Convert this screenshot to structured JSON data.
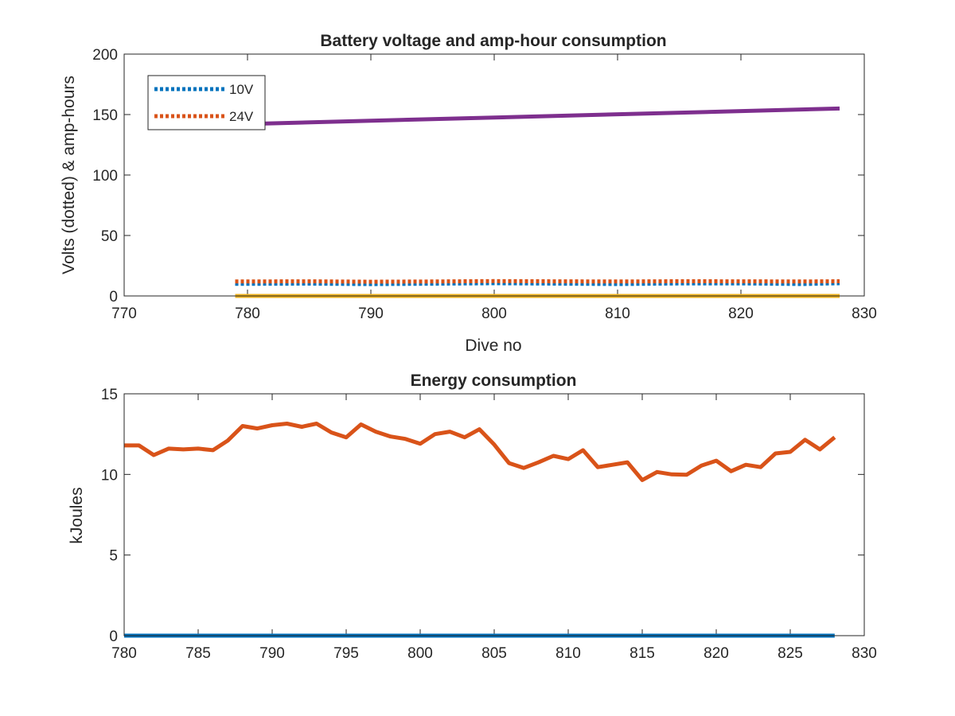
{
  "chart_data": [
    {
      "type": "line",
      "title": "Battery voltage and amp-hour consumption",
      "xlabel": "Dive no",
      "ylabel": "Volts (dotted) & amp-hours",
      "xlim": [
        770,
        830
      ],
      "ylim": [
        0,
        200
      ],
      "xticks": [
        770,
        780,
        790,
        800,
        810,
        820,
        830
      ],
      "yticks": [
        0,
        50,
        100,
        150,
        200
      ],
      "grid": false,
      "legend": {
        "placement": "top-left",
        "entries": [
          "10V",
          "24V"
        ]
      },
      "series": [
        {
          "name": "10V",
          "style": "dotted",
          "color": "#0072BD",
          "x": [
            779,
            785,
            790,
            795,
            800,
            805,
            810,
            815,
            820,
            825,
            828
          ],
          "y": [
            10,
            10.2,
            9.8,
            10.1,
            10.5,
            10.2,
            9.9,
            10.3,
            10.4,
            9.9,
            10.5
          ]
        },
        {
          "name": "24V",
          "style": "dotted",
          "color": "#D95319",
          "x": [
            779,
            785,
            790,
            795,
            800,
            805,
            810,
            815,
            820,
            825,
            828
          ],
          "y": [
            12,
            12.1,
            11.8,
            12,
            12.3,
            12.1,
            12,
            12.2,
            12.1,
            12,
            12.2
          ]
        },
        {
          "style": "solid",
          "color": "#EDB120",
          "x": [
            779,
            828
          ],
          "y": [
            0,
            0
          ]
        },
        {
          "style": "solid",
          "color": "#7E2F8E",
          "x": [
            779,
            828
          ],
          "y": [
            142,
            155
          ]
        }
      ]
    },
    {
      "type": "line",
      "title": "Energy consumption",
      "xlabel": "",
      "ylabel": "kJoules",
      "xlim": [
        780,
        830
      ],
      "ylim": [
        0,
        15
      ],
      "xticks": [
        780,
        785,
        790,
        795,
        800,
        805,
        810,
        815,
        820,
        825,
        830
      ],
      "yticks": [
        0,
        5,
        10,
        15
      ],
      "grid": false,
      "series": [
        {
          "style": "solid",
          "color": "#0072BD",
          "x": [
            780,
            828
          ],
          "y": [
            0,
            0
          ]
        },
        {
          "style": "solid",
          "color": "#D95319",
          "x": [
            780,
            781,
            782,
            783,
            784,
            785,
            786,
            787,
            788,
            789,
            790,
            791,
            792,
            793,
            794,
            795,
            796,
            797,
            798,
            799,
            800,
            801,
            802,
            803,
            804,
            805,
            806,
            807,
            808,
            809,
            810,
            811,
            812,
            813,
            814,
            815,
            816,
            817,
            818,
            819,
            820,
            821,
            822,
            823,
            824,
            825,
            826,
            827,
            828
          ],
          "y": [
            11.8,
            11.8,
            11.2,
            11.6,
            11.55,
            11.6,
            11.5,
            12.1,
            13.0,
            12.85,
            13.05,
            13.15,
            12.95,
            13.15,
            12.6,
            12.3,
            13.1,
            12.65,
            12.35,
            12.2,
            11.9,
            12.5,
            12.65,
            12.3,
            12.8,
            11.85,
            10.7,
            10.4,
            10.75,
            11.15,
            10.95,
            11.5,
            10.45,
            10.6,
            10.75,
            9.65,
            10.15,
            10.0,
            9.98,
            10.55,
            10.85,
            10.2,
            10.6,
            10.45,
            11.3,
            11.4,
            12.15,
            11.55,
            12.3
          ]
        }
      ]
    }
  ]
}
